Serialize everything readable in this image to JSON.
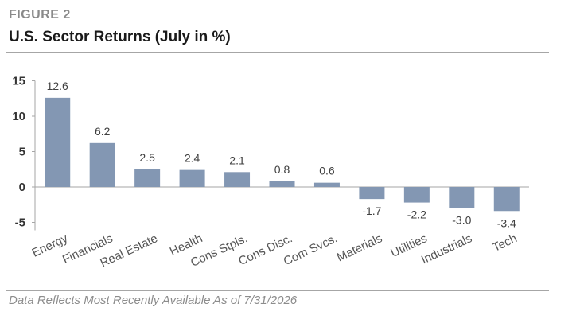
{
  "figure_label": "FIGURE 2",
  "title": "U.S. Sector Returns (July in %)",
  "footnote": "Data Reflects Most Recently Available As of 7/31/2026",
  "colors": {
    "bar": "#8397b3",
    "axis": "#a6a6a6"
  },
  "chart_data": {
    "type": "bar",
    "categories": [
      "Energy",
      "Financials",
      "Real Estate",
      "Health",
      "Cons Stpls.",
      "Cons Disc.",
      "Com Svcs.",
      "Materials",
      "Utilities",
      "Industrials",
      "Tech"
    ],
    "values": [
      12.6,
      6.2,
      2.5,
      2.4,
      2.1,
      0.8,
      0.6,
      -1.7,
      -2.2,
      -3.0,
      -3.4
    ],
    "data_labels": [
      "12.6",
      "6.2",
      "2.5",
      "2.4",
      "2.1",
      "0.8",
      "0.6",
      "-1.7",
      "-2.2",
      "-3.0",
      "-3.4"
    ],
    "yticks": [
      15,
      10,
      5,
      0,
      -5
    ],
    "ytick_labels": [
      "15",
      "10",
      "5",
      "0",
      "-5"
    ],
    "ylim": [
      -5,
      15
    ],
    "grid": false,
    "legend": "none"
  }
}
